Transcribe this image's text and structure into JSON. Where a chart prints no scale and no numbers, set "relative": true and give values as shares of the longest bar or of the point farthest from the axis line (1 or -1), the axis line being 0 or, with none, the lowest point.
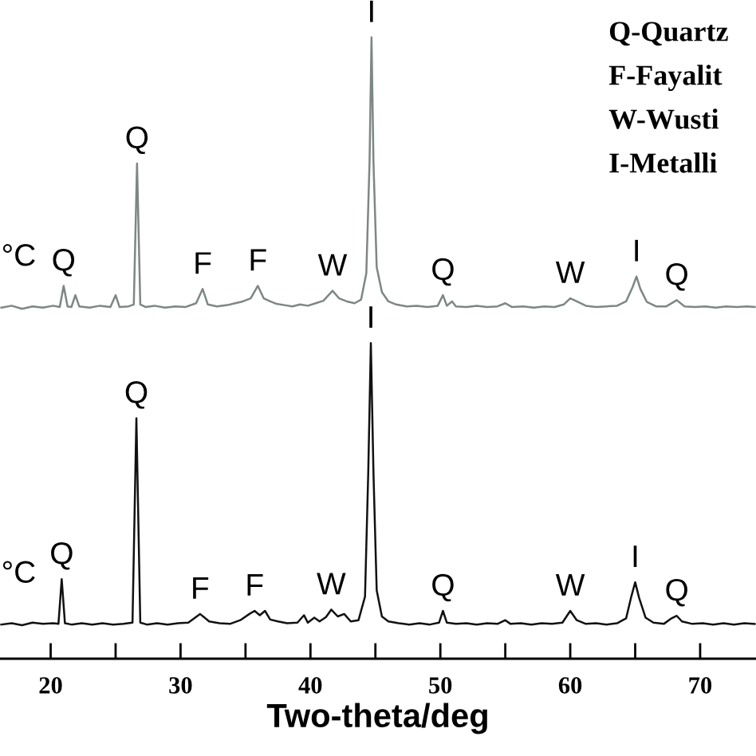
{
  "chart_data": {
    "type": "line",
    "relative": true,
    "xlabel": "Two-theta/deg",
    "xlim": [
      16.1,
      74.3
    ],
    "xticks": [
      20,
      {
        "value": 25,
        "label": null
      },
      30,
      {
        "value": 35,
        "label": null
      },
      40,
      {
        "value": 45,
        "label": null
      },
      50,
      {
        "value": 55,
        "label": null
      },
      60,
      {
        "value": 65,
        "label": null
      },
      70
    ],
    "tick_labels": "x",
    "series": [
      {
        "name": "°C",
        "color": "#7d8783",
        "x": [
          16.2,
          17,
          17.8,
          18.6,
          19.4,
          20.2,
          20.7,
          21.0,
          21.3,
          21.6,
          21.9,
          22.2,
          23,
          23.8,
          24.6,
          25.0,
          25.3,
          26.0,
          26.4,
          26.65,
          26.9,
          27.3,
          28,
          28.8,
          29.6,
          30.4,
          31.2,
          31.7,
          32.1,
          32.8,
          33.6,
          34.2,
          34.8,
          35.4,
          35.95,
          36.4,
          36.9,
          37.4,
          38,
          38.6,
          39.2,
          39.8,
          40.4,
          41,
          41.7,
          42.2,
          42.8,
          43.4,
          43.9,
          44.3,
          44.55,
          44.7,
          44.85,
          45.1,
          45.5,
          46,
          46.6,
          47.4,
          48.2,
          49,
          49.8,
          50.2,
          50.5,
          50.9,
          51.2,
          52,
          52.8,
          53.6,
          54.4,
          55,
          55.5,
          56.4,
          57.2,
          58,
          58.8,
          59.5,
          60.0,
          60.6,
          61.2,
          62,
          62.8,
          63.6,
          64.3,
          64.8,
          65.1,
          65.4,
          65.9,
          66.6,
          67.4,
          68.2,
          68.8,
          69.6,
          70.4,
          71.2,
          72,
          72.8,
          73.6,
          74.2
        ],
        "values": [
          0.565,
          0.568,
          0.563,
          0.567,
          0.565,
          0.568,
          0.566,
          0.6,
          0.567,
          0.566,
          0.585,
          0.567,
          0.565,
          0.568,
          0.566,
          0.585,
          0.566,
          0.567,
          0.57,
          0.797,
          0.57,
          0.566,
          0.568,
          0.565,
          0.567,
          0.566,
          0.572,
          0.595,
          0.57,
          0.567,
          0.569,
          0.572,
          0.575,
          0.58,
          0.6,
          0.58,
          0.575,
          0.571,
          0.569,
          0.567,
          0.57,
          0.568,
          0.572,
          0.576,
          0.592,
          0.58,
          0.575,
          0.572,
          0.578,
          0.62,
          0.8,
          1.0,
          0.8,
          0.63,
          0.59,
          0.575,
          0.57,
          0.567,
          0.568,
          0.566,
          0.568,
          0.585,
          0.568,
          0.575,
          0.567,
          0.566,
          0.568,
          0.566,
          0.567,
          0.572,
          0.566,
          0.567,
          0.565,
          0.567,
          0.566,
          0.57,
          0.58,
          0.574,
          0.568,
          0.566,
          0.567,
          0.568,
          0.575,
          0.598,
          0.615,
          0.595,
          0.574,
          0.567,
          0.567,
          0.577,
          0.567,
          0.566,
          0.567,
          0.565,
          0.567,
          0.566,
          0.567,
          0.566
        ]
      },
      {
        "name": "°C",
        "color": "#111111",
        "x": [
          16.2,
          17,
          17.8,
          18.6,
          19.4,
          20.2,
          20.6,
          20.85,
          21.1,
          21.6,
          22.4,
          23.2,
          24,
          24.8,
          25.6,
          26.3,
          26.6,
          26.9,
          27.4,
          28.2,
          29,
          29.8,
          30.6,
          31.5,
          32.2,
          33,
          33.8,
          34.6,
          35.3,
          35.7,
          36.1,
          36.5,
          36.9,
          37.5,
          38.2,
          39,
          39.5,
          39.8,
          40.3,
          40.7,
          41.2,
          41.6,
          42.1,
          42.6,
          43.1,
          43.7,
          44.2,
          44.45,
          44.65,
          44.85,
          45.1,
          45.5,
          46,
          46.8,
          47.6,
          48.4,
          49.2,
          49.9,
          50.2,
          50.5,
          51.2,
          52,
          52.8,
          53.6,
          54.4,
          55,
          55.4,
          56.2,
          57,
          57.8,
          58.6,
          59.4,
          60.0,
          60.5,
          61.2,
          62,
          62.8,
          63.6,
          64.3,
          64.7,
          65.0,
          65.3,
          65.8,
          66.4,
          67.2,
          67.8,
          68.2,
          68.6,
          69.4,
          70.2,
          71,
          71.8,
          72.6,
          73.4,
          74.2
        ],
        "values": [
          0.055,
          0.057,
          0.054,
          0.058,
          0.056,
          0.057,
          0.056,
          0.128,
          0.057,
          0.055,
          0.057,
          0.055,
          0.057,
          0.055,
          0.056,
          0.058,
          0.387,
          0.058,
          0.055,
          0.057,
          0.055,
          0.057,
          0.058,
          0.072,
          0.06,
          0.057,
          0.056,
          0.062,
          0.072,
          0.077,
          0.07,
          0.077,
          0.063,
          0.06,
          0.057,
          0.058,
          0.07,
          0.058,
          0.066,
          0.06,
          0.067,
          0.079,
          0.068,
          0.072,
          0.06,
          0.062,
          0.1,
          0.3,
          0.508,
          0.3,
          0.11,
          0.068,
          0.06,
          0.057,
          0.055,
          0.057,
          0.055,
          0.058,
          0.077,
          0.058,
          0.056,
          0.057,
          0.055,
          0.057,
          0.056,
          0.062,
          0.056,
          0.057,
          0.055,
          0.057,
          0.056,
          0.058,
          0.077,
          0.062,
          0.056,
          0.057,
          0.055,
          0.057,
          0.065,
          0.1,
          0.123,
          0.098,
          0.066,
          0.058,
          0.056,
          0.065,
          0.069,
          0.06,
          0.056,
          0.057,
          0.055,
          0.057,
          0.055,
          0.057,
          0.056
        ]
      }
    ],
    "annotations": [
      "Q-Quartz",
      "F-Fayalit",
      "W-Wusti",
      "I-Metalli",
      {
        "text": "Q",
        "x": 21.0,
        "y": 0.6
      },
      {
        "text": "Q",
        "x": 26.65,
        "y": 0.797
      },
      {
        "text": "F",
        "x": 31.7,
        "y": 0.595
      },
      {
        "text": "F",
        "x": 35.95,
        "y": 0.6
      },
      {
        "text": "W",
        "x": 41.7,
        "y": 0.592
      },
      {
        "text": "I",
        "x": 44.7,
        "y": 1.0
      },
      {
        "text": "Q",
        "x": 50.2,
        "y": 0.585
      },
      {
        "text": "W",
        "x": 60.0,
        "y": 0.58
      },
      {
        "text": "I",
        "x": 65.1,
        "y": 0.615
      },
      {
        "text": "Q",
        "x": 68.2,
        "y": 0.577
      },
      {
        "text": "Q",
        "x": 20.85,
        "y": 0.128
      },
      {
        "text": "Q",
        "x": 26.6,
        "y": 0.387
      },
      {
        "text": "F",
        "x": 31.5,
        "y": 0.072
      },
      {
        "text": "F",
        "x": 35.7,
        "y": 0.077
      },
      {
        "text": "W",
        "x": 41.6,
        "y": 0.079
      },
      {
        "text": "I",
        "x": 44.65,
        "y": 0.508
      },
      {
        "text": "Q",
        "x": 50.2,
        "y": 0.077
      },
      {
        "text": "W",
        "x": 60.0,
        "y": 0.077
      },
      {
        "text": "I",
        "x": 65.0,
        "y": 0.123
      },
      {
        "text": "Q",
        "x": 68.2,
        "y": 0.069
      }
    ]
  }
}
